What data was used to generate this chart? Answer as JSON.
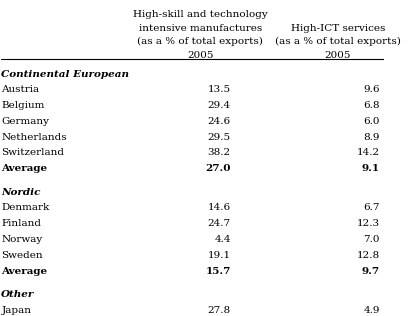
{
  "header_line1": [
    "High-skill and technology",
    ""
  ],
  "header_line2": [
    "intensive manufactures",
    "High-ICT services"
  ],
  "header_line3": [
    "(as a % of total exports)",
    "(as a % of total exports)"
  ],
  "header_line4": [
    "2005",
    "2005"
  ],
  "sections": [
    {
      "section_label": "Continental European",
      "rows": [
        {
          "label": "Austria",
          "col1": "13.5",
          "col2": "9.6",
          "bold": false
        },
        {
          "label": "Belgium",
          "col1": "29.4",
          "col2": "6.8",
          "bold": false
        },
        {
          "label": "Germany",
          "col1": "24.6",
          "col2": "6.0",
          "bold": false
        },
        {
          "label": "Netherlands",
          "col1": "29.5",
          "col2": "8.9",
          "bold": false
        },
        {
          "label": "Switzerland",
          "col1": "38.2",
          "col2": "14.2",
          "bold": false
        },
        {
          "label": "Average",
          "col1": "27.0",
          "col2": "9.1",
          "bold": true
        }
      ]
    },
    {
      "section_label": "Nordic",
      "rows": [
        {
          "label": "Denmark",
          "col1": "14.6",
          "col2": "6.7",
          "bold": false
        },
        {
          "label": "Finland",
          "col1": "24.7",
          "col2": "12.3",
          "bold": false
        },
        {
          "label": "Norway",
          "col1": "4.4",
          "col2": "7.0",
          "bold": false
        },
        {
          "label": "Sweden",
          "col1": "19.1",
          "col2": "12.8",
          "bold": false
        },
        {
          "label": "Average",
          "col1": "15.7",
          "col2": "9.7",
          "bold": true
        }
      ]
    },
    {
      "section_label": "Other",
      "rows": [
        {
          "label": "Japan",
          "col1": "27.8",
          "col2": "4.9",
          "bold": false
        }
      ]
    }
  ],
  "bg_color": "#ffffff",
  "text_color": "#000000",
  "font_size": 7.5,
  "header_font_size": 7.5
}
